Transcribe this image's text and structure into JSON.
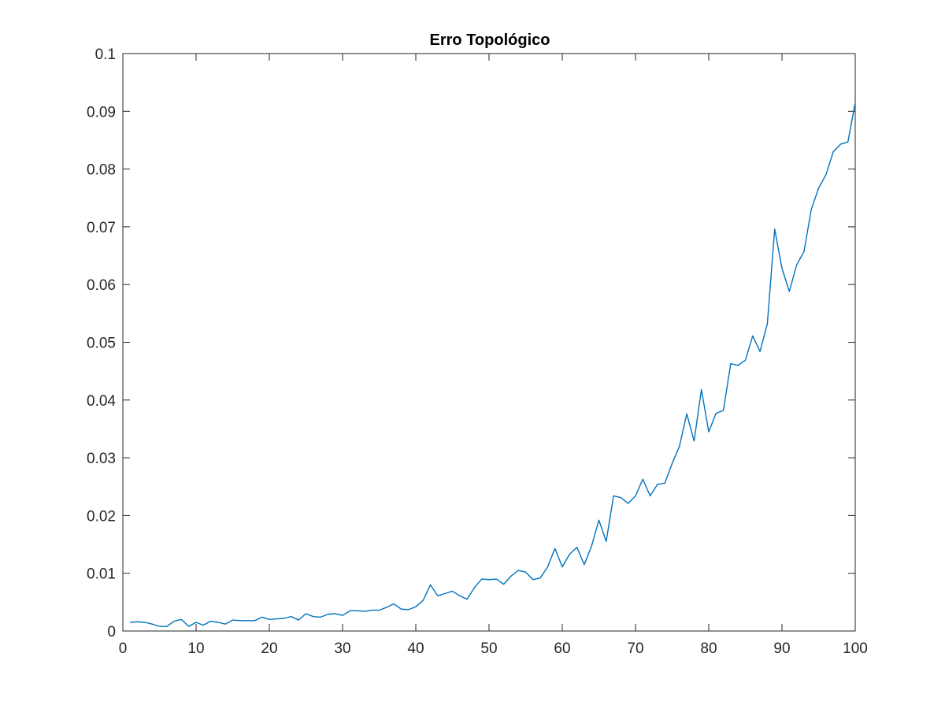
{
  "chart_data": {
    "type": "line",
    "title": "Erro Topológico",
    "xlabel": "",
    "ylabel": "",
    "xlim": [
      0,
      100
    ],
    "ylim": [
      0,
      0.1
    ],
    "xticks": [
      "0",
      "10",
      "20",
      "30",
      "40",
      "50",
      "60",
      "70",
      "80",
      "90",
      "100"
    ],
    "yticks": [
      "0",
      "0.01",
      "0.02",
      "0.03",
      "0.04",
      "0.05",
      "0.06",
      "0.07",
      "0.08",
      "0.09",
      "0.1"
    ],
    "xtick_values": [
      0,
      10,
      20,
      30,
      40,
      50,
      60,
      70,
      80,
      90,
      100
    ],
    "ytick_values": [
      0,
      0.01,
      0.02,
      0.03,
      0.04,
      0.05,
      0.06,
      0.07,
      0.08,
      0.09,
      0.1
    ],
    "grid": false,
    "series_color": "#0072BD",
    "series": [
      {
        "x": [
          1,
          2,
          3,
          4,
          5,
          6,
          7,
          8,
          9,
          10,
          11,
          12,
          13,
          14,
          15,
          16,
          17,
          18,
          19,
          20,
          21,
          22,
          23,
          24,
          25,
          26,
          27,
          28,
          29,
          30,
          31,
          32,
          33,
          34,
          35,
          36,
          37,
          38,
          39,
          40,
          41,
          42,
          43,
          44,
          45,
          46,
          47,
          48,
          49,
          50,
          51,
          52,
          53,
          54,
          55,
          56,
          57,
          58,
          59,
          60,
          61,
          62,
          63,
          64,
          65,
          66,
          67,
          68,
          69,
          70,
          71,
          72,
          73,
          74,
          75,
          76,
          77,
          78,
          79,
          80,
          81,
          82,
          83,
          84,
          85,
          86,
          87,
          88,
          89,
          90,
          91,
          92,
          93,
          94,
          95,
          96,
          97,
          98,
          99,
          100
        ],
        "values": [
          0.0015,
          0.0016,
          0.0015,
          0.0012,
          0.0008,
          0.0008,
          0.0017,
          0.002,
          0.0008,
          0.0015,
          0.001,
          0.0017,
          0.0015,
          0.0012,
          0.0019,
          0.0018,
          0.0018,
          0.0018,
          0.0024,
          0.002,
          0.0021,
          0.0022,
          0.0025,
          0.0019,
          0.003,
          0.0025,
          0.0024,
          0.0029,
          0.003,
          0.0027,
          0.0035,
          0.0035,
          0.0034,
          0.0036,
          0.0036,
          0.0041,
          0.0047,
          0.0038,
          0.0037,
          0.0042,
          0.0053,
          0.008,
          0.0061,
          0.0065,
          0.0069,
          0.0061,
          0.0055,
          0.0075,
          0.009,
          0.0089,
          0.009,
          0.0081,
          0.0095,
          0.0105,
          0.0102,
          0.0089,
          0.0092,
          0.0111,
          0.0143,
          0.0111,
          0.0133,
          0.0145,
          0.0115,
          0.0147,
          0.0192,
          0.0155,
          0.0234,
          0.0231,
          0.0221,
          0.0234,
          0.0263,
          0.0234,
          0.0254,
          0.0256,
          0.029,
          0.032,
          0.0376,
          0.0329,
          0.0418,
          0.0345,
          0.0377,
          0.0382,
          0.0463,
          0.046,
          0.0469,
          0.0511,
          0.0484,
          0.0532,
          0.0696,
          0.0628,
          0.0588,
          0.0634,
          0.0657,
          0.073,
          0.0767,
          0.079,
          0.083,
          0.0843,
          0.0847,
          0.0915
        ]
      }
    ]
  }
}
